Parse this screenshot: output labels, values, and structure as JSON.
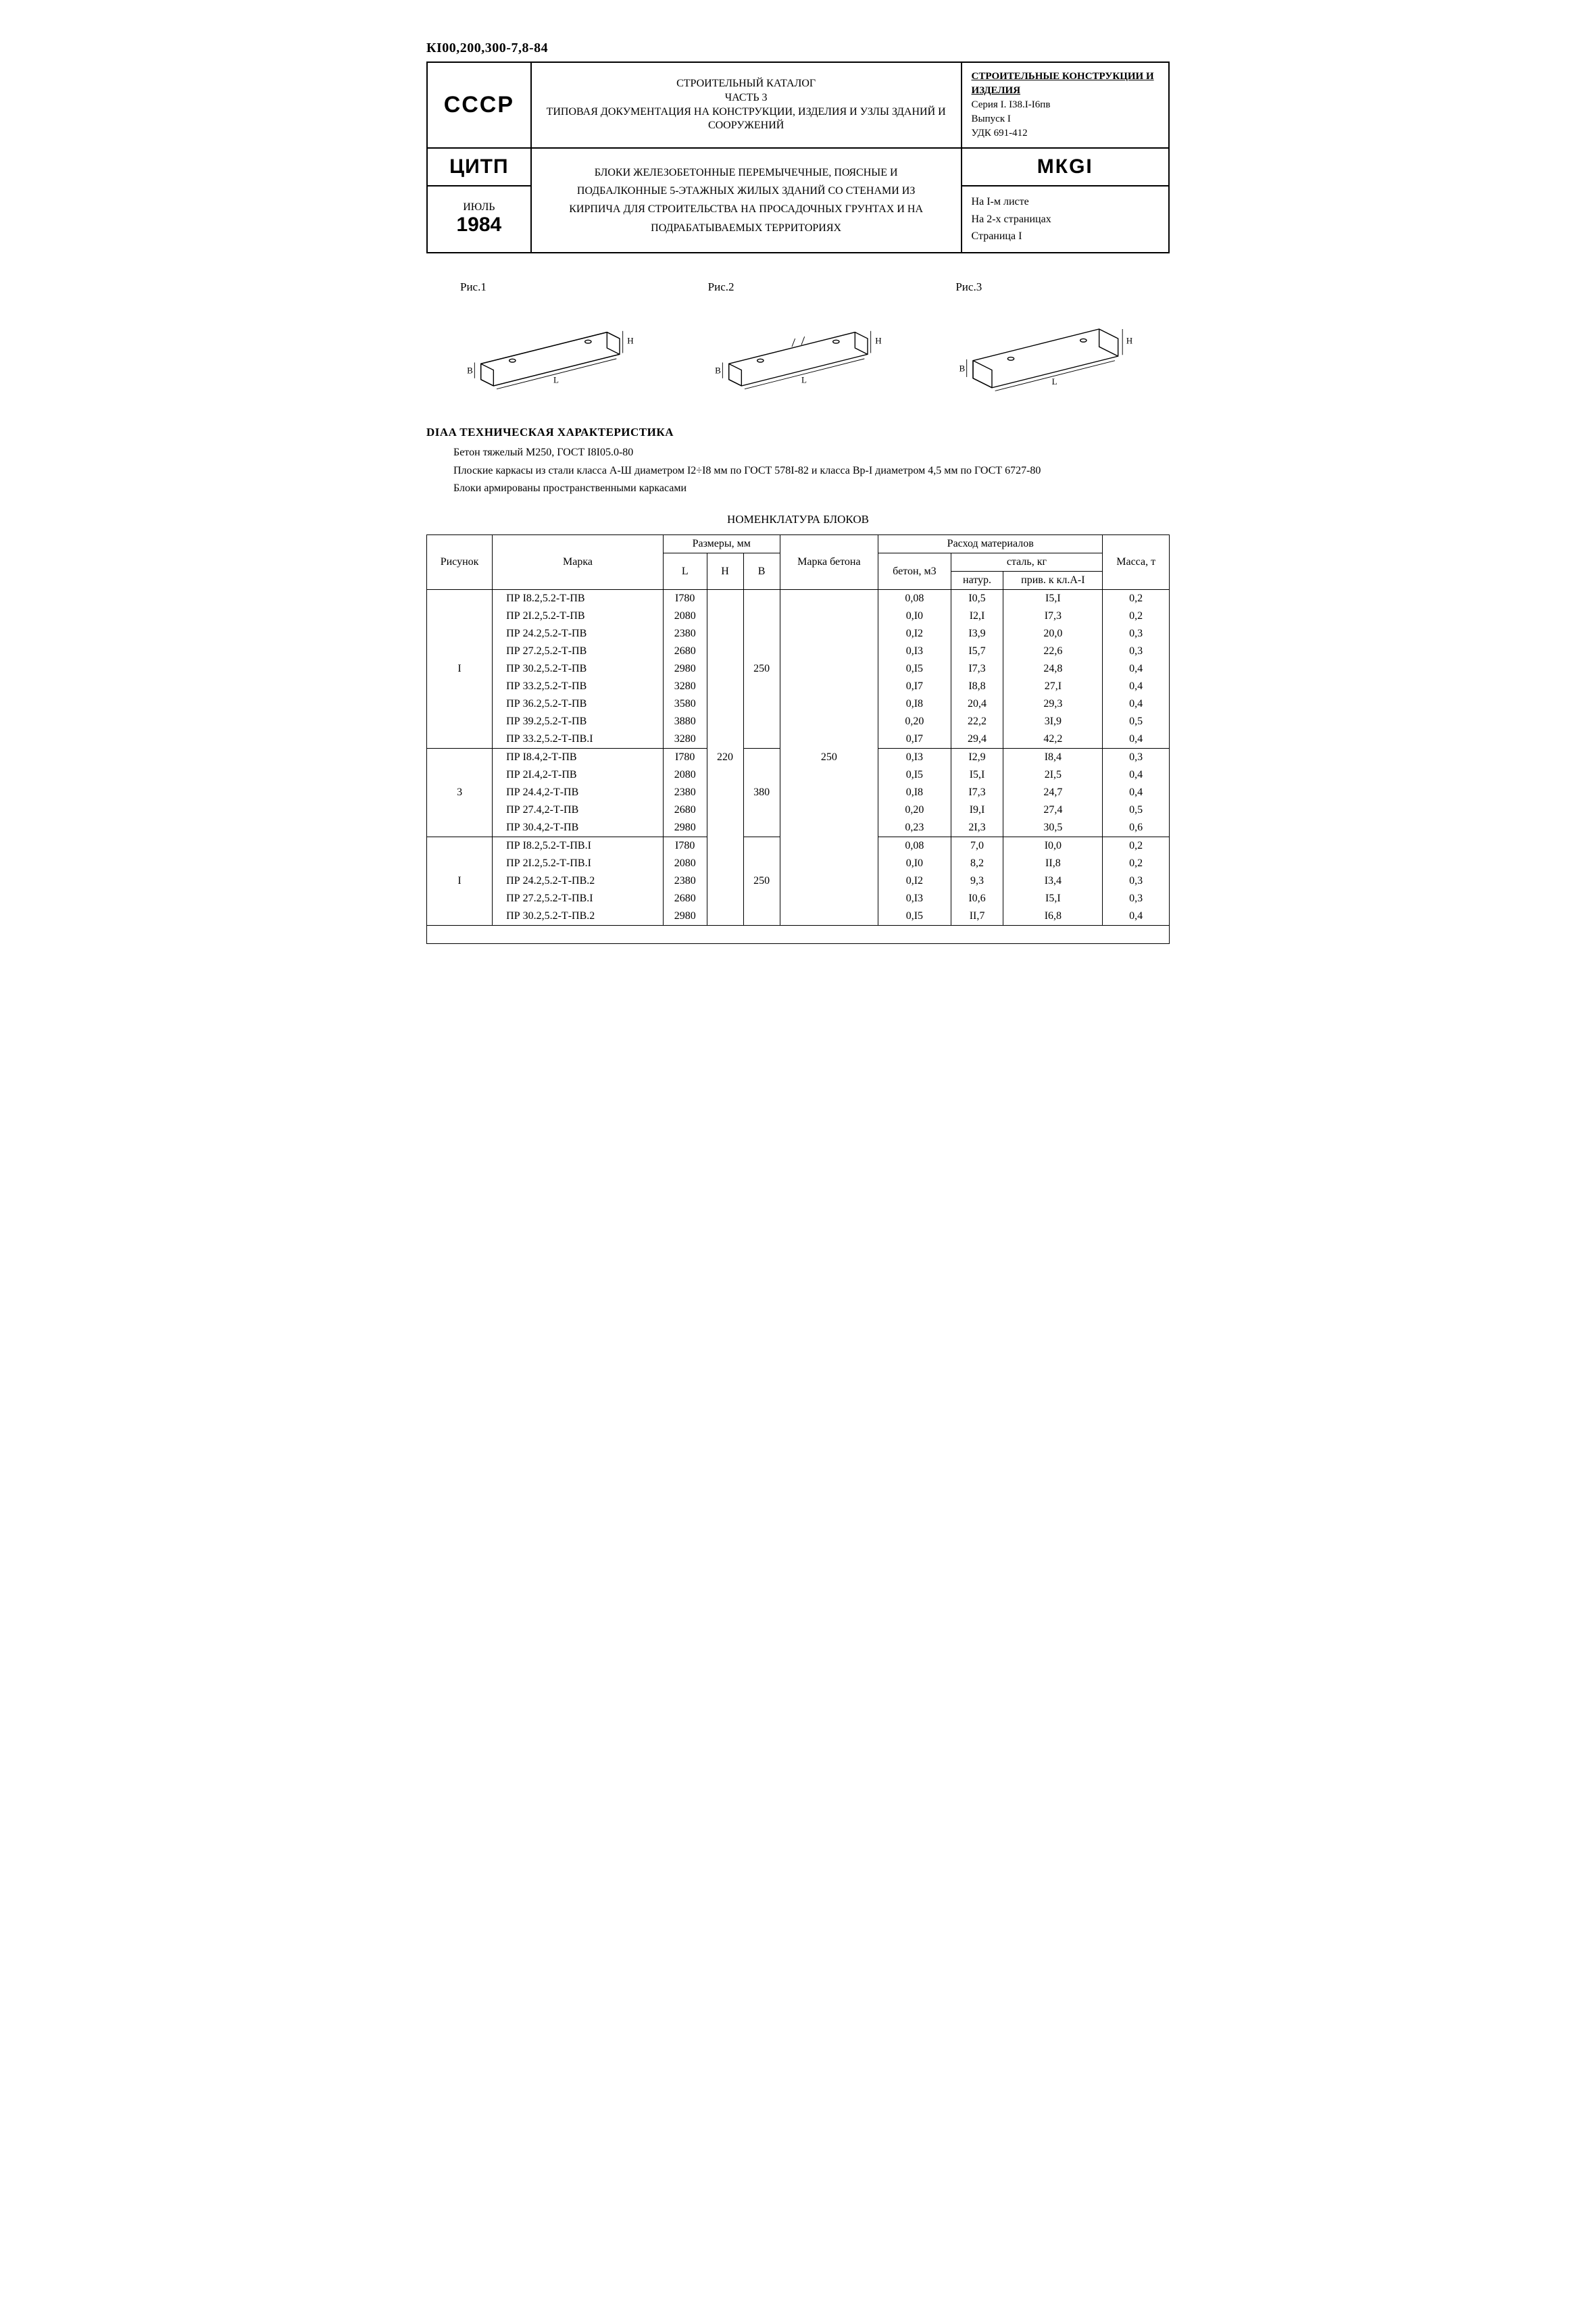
{
  "doc_code": "КI00,200,300-7,8-84",
  "header": {
    "country": "СССР",
    "org": "ЦИТП",
    "month": "ИЮЛЬ",
    "year": "1984",
    "catalog_line1": "СТРОИТЕЛЬНЫЙ КАТАЛОГ",
    "catalog_line2": "ЧАСТЬ 3",
    "catalog_line3": "ТИПОВАЯ ДОКУМЕНТАЦИЯ НА КОНСТРУКЦИИ, ИЗДЕЛИЯ И УЗЛЫ ЗДАНИЙ И СООРУЖЕНИЙ",
    "main_desc": "БЛОКИ ЖЕЛЕЗОБЕТОННЫЕ ПЕРЕМЫЧЕЧНЫЕ, ПОЯСНЫЕ И ПОДБАЛКОННЫЕ 5-ЭТАЖНЫХ ЖИЛЫХ ЗДАНИЙ СО СТЕНАМИ ИЗ КИРПИЧА ДЛЯ СТРОИТЕЛЬСТВА НА ПРОСАДОЧНЫХ ГРУНТАХ И НА ПОДРАБАТЫВАЕМЫХ ТЕРРИТОРИЯХ",
    "right_block_title": "СТРОИТЕЛЬНЫЕ КОНСТРУКЦИИ И ИЗДЕЛИЯ",
    "right_block_series": "Серия I. I38.I-I6пв",
    "right_block_issue": "Выпуск I",
    "right_block_udk": "УДК 691-412",
    "code": "МКGI",
    "page_line1": "На I-м листе",
    "page_line2": "На 2-х страницах",
    "page_line3": "Страница I"
  },
  "figures": {
    "f1": "Рис.1",
    "f2": "Рис.2",
    "f3": "Рис.3",
    "dim_L": "L",
    "dim_H": "H",
    "dim_B": "B"
  },
  "tech": {
    "title": "DIAA ТЕХНИЧЕСКАЯ ХАРАКТЕРИСТИКА",
    "line1": "Бетон тяжелый М250, ГОСТ I8I05.0-80",
    "line2": "Плоские каркасы из стали класса А-Ш диаметром I2÷I8 мм по ГОСТ 578I-82 и класса Вр-I диаметром 4,5 мм по ГОСТ 6727-80",
    "line3": "Блоки армированы пространственными каркасами"
  },
  "nom_title": "НОМЕНКЛАТУРА БЛОКОВ",
  "table": {
    "headers": {
      "risunok": "Рисунок",
      "marka": "Марка",
      "razmery": "Размеры, мм",
      "L": "L",
      "H": "H",
      "B": "В",
      "marka_betona": "Марка бетона",
      "rashod": "Расход материалов",
      "beton_m3": "бетон, м3",
      "stal": "сталь, кг",
      "natur": "натур.",
      "priv": "прив. к кл.А-I",
      "massa": "Масса, т"
    },
    "shared": {
      "H": "220",
      "B_marka": "250"
    },
    "groups": [
      {
        "risunok": "I",
        "B": "250",
        "rows": [
          {
            "marka": "ПР I8.2,5.2-Т-ПВ",
            "L": "I780",
            "beton": "0,08",
            "natur": "I0,5",
            "priv": "I5,I",
            "massa": "0,2"
          },
          {
            "marka": "ПР 2I.2,5.2-Т-ПВ",
            "L": "2080",
            "beton": "0,I0",
            "natur": "I2,I",
            "priv": "I7,3",
            "massa": "0,2"
          },
          {
            "marka": "ПР 24.2,5.2-Т-ПВ",
            "L": "2380",
            "beton": "0,I2",
            "natur": "I3,9",
            "priv": "20,0",
            "massa": "0,3"
          },
          {
            "marka": "ПР 27.2,5.2-Т-ПВ",
            "L": "2680",
            "beton": "0,I3",
            "natur": "I5,7",
            "priv": "22,6",
            "massa": "0,3"
          },
          {
            "marka": "ПР 30.2,5.2-Т-ПВ",
            "L": "2980",
            "beton": "0,I5",
            "natur": "I7,3",
            "priv": "24,8",
            "massa": "0,4"
          },
          {
            "marka": "ПР 33.2,5.2-Т-ПВ",
            "L": "3280",
            "beton": "0,I7",
            "natur": "I8,8",
            "priv": "27,I",
            "massa": "0,4"
          },
          {
            "marka": "ПР 36.2,5.2-Т-ПВ",
            "L": "3580",
            "beton": "0,I8",
            "natur": "20,4",
            "priv": "29,3",
            "massa": "0,4"
          },
          {
            "marka": "ПР 39.2,5.2-Т-ПВ",
            "L": "3880",
            "beton": "0,20",
            "natur": "22,2",
            "priv": "3I,9",
            "massa": "0,5"
          },
          {
            "marka": "ПР 33.2,5.2-Т-ПВ.I",
            "L": "3280",
            "beton": "0,I7",
            "natur": "29,4",
            "priv": "42,2",
            "massa": "0,4"
          }
        ]
      },
      {
        "risunok": "3",
        "B": "380",
        "rows": [
          {
            "marka": "ПР I8.4,2-Т-ПВ",
            "L": "I780",
            "beton": "0,I3",
            "natur": "I2,9",
            "priv": "I8,4",
            "massa": "0,3"
          },
          {
            "marka": "ПР 2I.4,2-Т-ПВ",
            "L": "2080",
            "beton": "0,I5",
            "natur": "I5,I",
            "priv": "2I,5",
            "massa": "0,4"
          },
          {
            "marka": "ПР 24.4,2-Т-ПВ",
            "L": "2380",
            "beton": "0,I8",
            "natur": "I7,3",
            "priv": "24,7",
            "massa": "0,4"
          },
          {
            "marka": "ПР 27.4,2-Т-ПВ",
            "L": "2680",
            "beton": "0,20",
            "natur": "I9,I",
            "priv": "27,4",
            "massa": "0,5"
          },
          {
            "marka": "ПР 30.4,2-Т-ПВ",
            "L": "2980",
            "beton": "0,23",
            "natur": "2I,3",
            "priv": "30,5",
            "massa": "0,6"
          }
        ]
      },
      {
        "risunok": "I",
        "B": "250",
        "rows": [
          {
            "marka": "ПР I8.2,5.2-Т-ПВ.I",
            "L": "I780",
            "beton": "0,08",
            "natur": "7,0",
            "priv": "I0,0",
            "massa": "0,2"
          },
          {
            "marka": "ПР 2I.2,5.2-Т-ПВ.I",
            "L": "2080",
            "beton": "0,I0",
            "natur": "8,2",
            "priv": "II,8",
            "massa": "0,2"
          },
          {
            "marka": "ПР 24.2,5.2-Т-ПВ.2",
            "L": "2380",
            "beton": "0,I2",
            "natur": "9,3",
            "priv": "I3,4",
            "massa": "0,3"
          },
          {
            "marka": "ПР 27.2,5.2-Т-ПВ.I",
            "L": "2680",
            "beton": "0,I3",
            "natur": "I0,6",
            "priv": "I5,I",
            "massa": "0,3"
          },
          {
            "marka": "ПР 30.2,5.2-Т-ПВ.2",
            "L": "2980",
            "beton": "0,I5",
            "natur": "II,7",
            "priv": "I6,8",
            "massa": "0,4"
          }
        ]
      }
    ]
  }
}
